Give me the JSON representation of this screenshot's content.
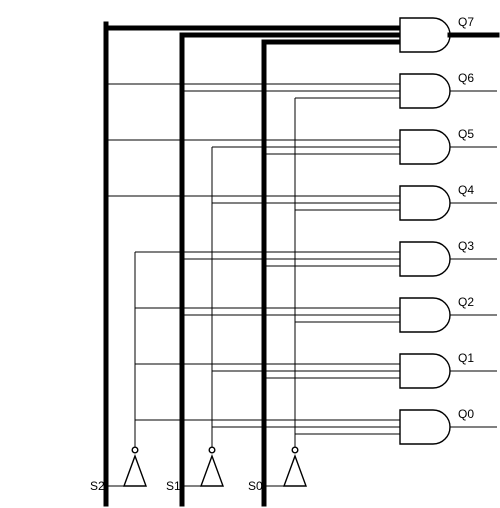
{
  "diagram": {
    "inputs": [
      {
        "label": "S2"
      },
      {
        "label": "S1"
      },
      {
        "label": "S0"
      }
    ],
    "outputs": [
      {
        "label": "Q7",
        "bits": [
          1,
          1,
          1
        ]
      },
      {
        "label": "Q6",
        "bits": [
          1,
          1,
          0
        ]
      },
      {
        "label": "Q5",
        "bits": [
          1,
          0,
          1
        ]
      },
      {
        "label": "Q4",
        "bits": [
          1,
          0,
          0
        ]
      },
      {
        "label": "Q3",
        "bits": [
          0,
          1,
          1
        ]
      },
      {
        "label": "Q2",
        "bits": [
          0,
          1,
          0
        ]
      },
      {
        "label": "Q1",
        "bits": [
          0,
          0,
          1
        ]
      },
      {
        "label": "Q0",
        "bits": [
          0,
          0,
          0
        ]
      }
    ]
  }
}
